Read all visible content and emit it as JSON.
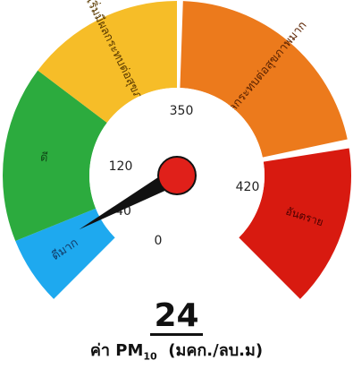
{
  "gauge": {
    "zones": [
      {
        "label": "ดีมาก",
        "color": "#1ea9ef",
        "text_color": "#123a66"
      },
      {
        "label": "ดี",
        "color": "#2cab3e",
        "text_color": "#114a18"
      },
      {
        "label": "เริ่มมีผลกระทบต่อสุขภาพ",
        "color": "#f6bd28",
        "text_color": "#5a3a00"
      },
      {
        "label": "มีผลกระทบต่อสุขภาพมาก",
        "color": "#ec7a1c",
        "text_color": "#5a2200"
      },
      {
        "label": "อันตราย",
        "color": "#d81a10",
        "text_color": "#4a0000"
      }
    ],
    "ticks": [
      "0",
      "40",
      "120",
      "350",
      "420"
    ],
    "value": "24",
    "value_fraction": 0.06,
    "needle_color": "#111111",
    "hub_color": "#e0201a"
  },
  "caption": {
    "prefix": "ค่า PM",
    "sub": "10",
    "unit": "(มคก./ลบ.ม)"
  }
}
